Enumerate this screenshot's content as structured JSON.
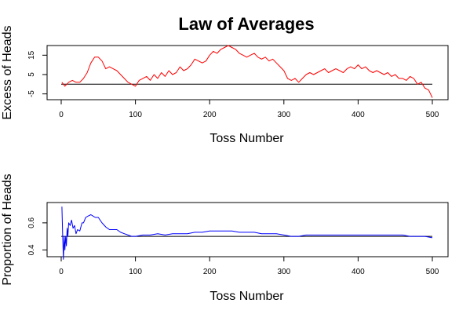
{
  "title": "Law of Averages",
  "chart_data": [
    {
      "type": "line",
      "xlabel": "Toss Number",
      "ylabel": "Excess of Heads",
      "xlim": [
        0,
        500
      ],
      "ylim": [
        -8,
        20
      ],
      "xticks": [
        0,
        100,
        200,
        300,
        400,
        500
      ],
      "xtick_labels": [
        "0",
        "100",
        "200",
        "300",
        "400",
        "500"
      ],
      "yticks": [
        -5,
        5,
        15
      ],
      "ytick_labels": [
        "-5",
        "5",
        "15"
      ],
      "reference_line": 0,
      "reference_color": "#000000",
      "series": [
        {
          "color": "#ff0000",
          "x": [
            1,
            5,
            10,
            15,
            20,
            25,
            30,
            35,
            40,
            45,
            50,
            55,
            60,
            65,
            70,
            75,
            80,
            85,
            90,
            95,
            100,
            105,
            110,
            115,
            120,
            125,
            130,
            135,
            140,
            145,
            150,
            155,
            160,
            165,
            170,
            175,
            180,
            185,
            190,
            195,
            200,
            205,
            210,
            215,
            220,
            225,
            230,
            235,
            240,
            245,
            250,
            255,
            260,
            265,
            270,
            275,
            280,
            285,
            290,
            295,
            300,
            305,
            310,
            315,
            320,
            325,
            330,
            335,
            340,
            345,
            350,
            355,
            360,
            365,
            370,
            375,
            380,
            385,
            390,
            395,
            400,
            405,
            410,
            415,
            420,
            425,
            430,
            435,
            440,
            445,
            450,
            455,
            460,
            465,
            470,
            475,
            480,
            485,
            490,
            495,
            500
          ],
          "y": [
            1,
            -1,
            1,
            2,
            1,
            1,
            3,
            6,
            11,
            14,
            14,
            12,
            8,
            9,
            8,
            7,
            5,
            3,
            1,
            0,
            -1,
            2,
            3,
            4,
            2,
            5,
            3,
            6,
            4,
            7,
            5,
            6,
            9,
            7,
            8,
            10,
            13,
            12,
            11,
            12,
            15,
            17,
            16,
            18,
            19,
            20,
            19,
            18,
            16,
            15,
            14,
            15,
            16,
            14,
            13,
            14,
            12,
            13,
            11,
            9,
            7,
            3,
            2,
            3,
            1,
            3,
            5,
            6,
            5,
            6,
            7,
            8,
            6,
            7,
            8,
            7,
            6,
            8,
            9,
            8,
            10,
            8,
            9,
            7,
            6,
            7,
            6,
            5,
            6,
            4,
            5,
            3,
            3,
            2,
            4,
            3,
            0,
            1,
            -2,
            -3,
            -7
          ]
        }
      ]
    },
    {
      "type": "line",
      "xlabel": "Toss Number",
      "ylabel": "Proportion of Heads",
      "xlim": [
        0,
        500
      ],
      "ylim": [
        0.35,
        0.75
      ],
      "xticks": [
        0,
        100,
        200,
        300,
        400,
        500
      ],
      "xtick_labels": [
        "0",
        "100",
        "200",
        "300",
        "400",
        "500"
      ],
      "yticks": [
        0.4,
        0.6
      ],
      "ytick_labels": [
        "0.4",
        "0.6"
      ],
      "reference_line": 0.5,
      "reference_color": "#000000",
      "series": [
        {
          "color": "#0000ff",
          "x": [
            1,
            2,
            3,
            4,
            5,
            6,
            7,
            8,
            9,
            10,
            12,
            14,
            16,
            18,
            20,
            22,
            25,
            28,
            30,
            33,
            36,
            40,
            43,
            46,
            50,
            55,
            60,
            65,
            70,
            75,
            80,
            85,
            90,
            95,
            100,
            110,
            120,
            130,
            140,
            150,
            160,
            170,
            180,
            190,
            200,
            210,
            220,
            230,
            240,
            250,
            260,
            270,
            280,
            290,
            300,
            310,
            320,
            330,
            340,
            350,
            360,
            370,
            380,
            390,
            400,
            410,
            420,
            430,
            440,
            450,
            460,
            470,
            480,
            490,
            500
          ],
          "y": [
            0.72,
            0.5,
            0.33,
            0.5,
            0.4,
            0.5,
            0.43,
            0.56,
            0.5,
            0.6,
            0.58,
            0.62,
            0.56,
            0.58,
            0.52,
            0.55,
            0.54,
            0.6,
            0.6,
            0.64,
            0.65,
            0.66,
            0.65,
            0.64,
            0.64,
            0.6,
            0.57,
            0.55,
            0.55,
            0.55,
            0.53,
            0.52,
            0.51,
            0.5,
            0.5,
            0.51,
            0.51,
            0.52,
            0.51,
            0.52,
            0.52,
            0.52,
            0.53,
            0.53,
            0.54,
            0.54,
            0.54,
            0.54,
            0.53,
            0.53,
            0.53,
            0.52,
            0.52,
            0.52,
            0.51,
            0.5,
            0.5,
            0.51,
            0.51,
            0.51,
            0.51,
            0.51,
            0.51,
            0.51,
            0.51,
            0.51,
            0.51,
            0.51,
            0.51,
            0.51,
            0.51,
            0.5,
            0.5,
            0.5,
            0.49
          ]
        }
      ]
    }
  ]
}
